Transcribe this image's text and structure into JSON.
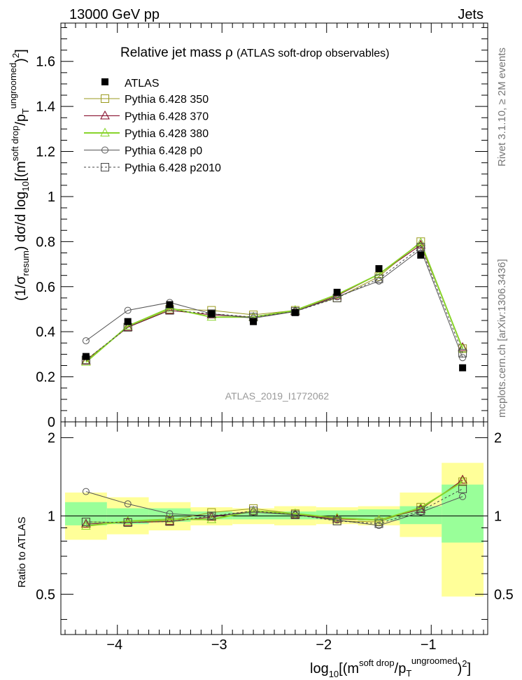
{
  "header": {
    "left": "13000 GeV pp",
    "right": "Jets",
    "side_text_top": "Rivet 3.1.10, ≥ 2M events",
    "side_text_bottom": "mcplots.cern.ch [arXiv:1306.3436]",
    "watermark": "ATLAS_2019_I1772062"
  },
  "chart_data": {
    "type": "line",
    "title_main": "Relative jet mass",
    "title_symbol": "ρ",
    "title_sub": "(ATLAS soft-drop observables)",
    "ylabel": "(1/σresum) dσ/d log10[(m soft drop / pT ungroomed)²]",
    "xlabel": "log10[(m soft drop / pT ungroomed)²]",
    "ratio_ylabel": "Ratio to ATLAS",
    "xlim": [
      -4.54,
      -0.46
    ],
    "ylim": [
      0,
      1.77
    ],
    "ratio_ylim": [
      0.35,
      2.3
    ],
    "x_ticks": [
      -4,
      -3,
      -2,
      -1
    ],
    "y_ticks": [
      0,
      0.2,
      0.4,
      0.6,
      0.8,
      1,
      1.2,
      1.4,
      1.6
    ],
    "ratio_ticks": [
      0.5,
      1,
      2
    ],
    "x": [
      -4.3,
      -3.9,
      -3.5,
      -3.1,
      -2.7,
      -2.3,
      -1.9,
      -1.5,
      -1.1,
      -0.7
    ],
    "bin_edges": [
      -4.5,
      -4.1,
      -3.7,
      -3.3,
      -2.9,
      -2.5,
      -2.1,
      -1.7,
      -1.3,
      -0.9,
      -0.5
    ],
    "data": {
      "name": "ATLAS",
      "values": [
        0.29,
        0.445,
        0.52,
        0.48,
        0.445,
        0.485,
        0.575,
        0.68,
        0.74,
        0.24
      ],
      "band_stat": [
        [
          0.92,
          1.13
        ],
        [
          0.93,
          1.07
        ],
        [
          0.95,
          1.07
        ],
        [
          0.97,
          1.04
        ],
        [
          0.97,
          1.03
        ],
        [
          0.97,
          1.04
        ],
        [
          0.97,
          1.05
        ],
        [
          0.96,
          1.06
        ],
        [
          0.93,
          1.09
        ],
        [
          0.79,
          1.32
        ]
      ],
      "band_total": [
        [
          0.81,
          1.23
        ],
        [
          0.85,
          1.18
        ],
        [
          0.88,
          1.13
        ],
        [
          0.92,
          1.08
        ],
        [
          0.93,
          1.07
        ],
        [
          0.92,
          1.09
        ],
        [
          0.93,
          1.08
        ],
        [
          0.92,
          1.09
        ],
        [
          0.83,
          1.23
        ],
        [
          0.49,
          1.6
        ]
      ]
    },
    "series": [
      {
        "name": "Pythia 6.428 350",
        "color": "#9a9a1e",
        "marker": "square",
        "dash": "",
        "values": [
          0.275,
          0.42,
          0.5,
          0.495,
          0.475,
          0.495,
          0.55,
          0.645,
          0.8,
          0.325
        ]
      },
      {
        "name": "Pythia 6.428 370",
        "color": "#800020",
        "marker": "triangle",
        "dash": "",
        "values": [
          0.27,
          0.42,
          0.495,
          0.475,
          0.465,
          0.49,
          0.56,
          0.655,
          0.785,
          0.33
        ]
      },
      {
        "name": "Pythia 6.428 380",
        "color": "#88d42a",
        "marker": "triangle",
        "dash": "",
        "values": [
          0.265,
          0.425,
          0.505,
          0.465,
          0.465,
          0.495,
          0.565,
          0.655,
          0.795,
          0.325
        ]
      },
      {
        "name": "Pythia 6.428 p0",
        "color": "#555555",
        "marker": "circle",
        "dash": "",
        "values": [
          0.36,
          0.495,
          0.53,
          0.48,
          0.46,
          0.49,
          0.555,
          0.625,
          0.765,
          0.285
        ]
      },
      {
        "name": "Pythia 6.428 p2010",
        "color": "#444444",
        "marker": "square",
        "dash": "3,3",
        "values": [
          0.275,
          0.42,
          0.495,
          0.48,
          0.465,
          0.49,
          0.55,
          0.635,
          0.775,
          0.305
        ]
      }
    ]
  }
}
